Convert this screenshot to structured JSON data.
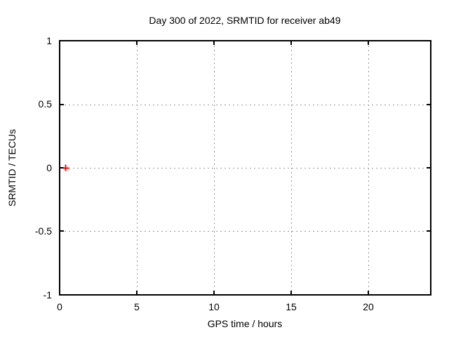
{
  "chart_data": {
    "type": "scatter",
    "title": "Day 300 of 2022, SRMTID for receiver ab49",
    "xlabel": "GPS time / hours",
    "ylabel": "SRMTID / TECUs",
    "xlim": [
      0,
      24
    ],
    "ylim": [
      -1,
      1
    ],
    "x_ticks": [
      0,
      5,
      10,
      15,
      20
    ],
    "x_tick_labels": [
      "0",
      "5",
      "10",
      "15",
      "20"
    ],
    "y_ticks": [
      1,
      0.5,
      0,
      -0.5,
      -1
    ],
    "y_tick_labels": [
      "1",
      "0.5",
      "0",
      "-0.5",
      "-1"
    ],
    "grid": true,
    "grid_style": "dotted",
    "grid_color": "#989898",
    "border_color": "#000000",
    "background_color": "#ffffff",
    "legend_position": "none",
    "series": [
      {
        "name": "SRMTID",
        "marker": "plus",
        "color": "#ff0000",
        "points": [
          {
            "x": 0.35,
            "y": 0.0
          }
        ]
      }
    ]
  }
}
